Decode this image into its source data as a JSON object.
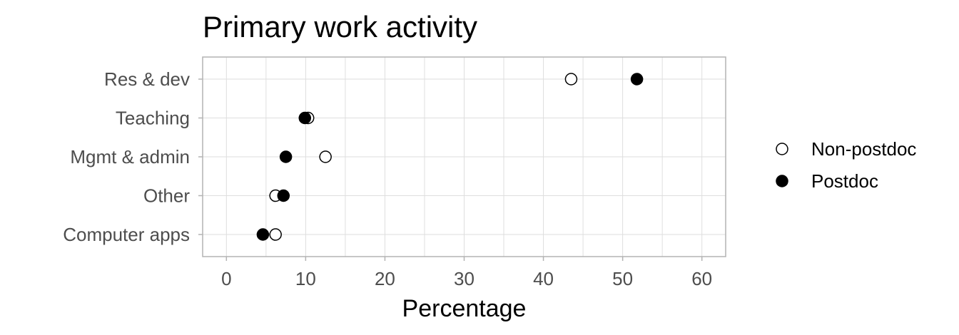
{
  "chart_data": {
    "type": "scatter",
    "title": "Primary work activity",
    "xlabel": "Percentage",
    "ylabel": "",
    "xlim": [
      -3,
      63
    ],
    "x_ticks": [
      0,
      10,
      20,
      30,
      40,
      50,
      60
    ],
    "categories": [
      "Res & dev",
      "Teaching",
      "Mgmt & admin",
      "Other",
      "Computer apps"
    ],
    "series": [
      {
        "name": "Non-postdoc",
        "marker": "open-circle",
        "color": "#000000",
        "values": [
          43.5,
          10.3,
          12.5,
          6.2,
          6.2
        ]
      },
      {
        "name": "Postdoc",
        "marker": "filled-circle",
        "color": "#000000",
        "values": [
          51.8,
          9.9,
          7.5,
          7.2,
          4.6
        ]
      }
    ],
    "grid": true,
    "legend_position": "right"
  }
}
